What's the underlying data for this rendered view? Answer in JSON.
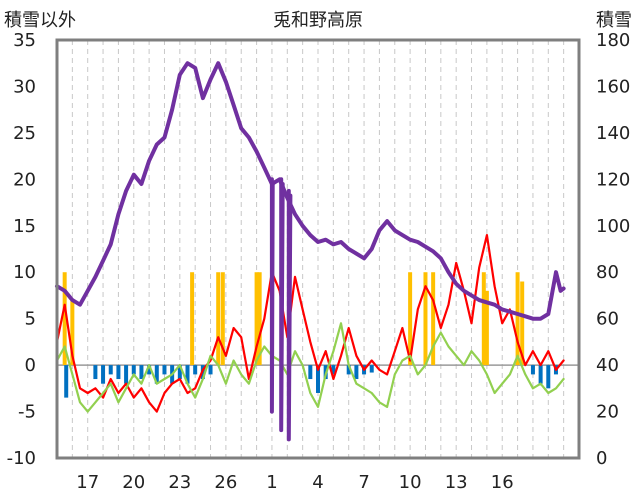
{
  "chart_data": {
    "type": "line",
    "title": "兎和野高原",
    "left_axis_label": "積雪以外",
    "right_axis_label": "積雪",
    "y_left_range": [
      -10,
      35
    ],
    "y_left_ticks": [
      "35",
      "30",
      "25",
      "20",
      "15",
      "10",
      "5",
      "0",
      "-5",
      "-10"
    ],
    "y_right_range": [
      0,
      180
    ],
    "y_right_ticks": [
      "180",
      "160",
      "140",
      "120",
      "100",
      "80",
      "60",
      "40",
      "20",
      "0"
    ],
    "x_range": [
      15,
      49
    ],
    "x_ticks": [
      {
        "x": 17,
        "label": "17"
      },
      {
        "x": 20,
        "label": "20"
      },
      {
        "x": 23,
        "label": "23"
      },
      {
        "x": 26,
        "label": "26"
      },
      {
        "x": 29,
        "label": "1"
      },
      {
        "x": 32,
        "label": "4"
      },
      {
        "x": 35,
        "label": "7"
      },
      {
        "x": 38,
        "label": "10"
      },
      {
        "x": 41,
        "label": "13"
      },
      {
        "x": 44,
        "label": "16"
      }
    ],
    "grid": "vertical dashed lines at every day",
    "colors": {
      "snow": "#7030a0",
      "temp_max": "#ff0000",
      "temp_min": "#92d050",
      "sunshine": "#ffc000",
      "precip": "#0070c0",
      "frame": "#7f7f7f"
    },
    "series": [
      {
        "axis": "right",
        "color": "#7030a0",
        "points": [
          [
            15.0,
            74
          ],
          [
            15.5,
            72
          ],
          [
            16.0,
            68
          ],
          [
            16.5,
            66
          ],
          [
            17.0,
            72
          ],
          [
            17.5,
            78
          ],
          [
            18.0,
            85
          ],
          [
            18.5,
            92
          ],
          [
            19.0,
            105
          ],
          [
            19.5,
            115
          ],
          [
            20.0,
            122
          ],
          [
            20.5,
            118
          ],
          [
            21.0,
            128
          ],
          [
            21.5,
            135
          ],
          [
            22.0,
            138
          ],
          [
            22.5,
            150
          ],
          [
            23.0,
            165
          ],
          [
            23.5,
            170
          ],
          [
            24.0,
            168
          ],
          [
            24.5,
            155
          ],
          [
            25.0,
            163
          ],
          [
            25.5,
            170
          ],
          [
            26.0,
            162
          ],
          [
            26.5,
            152
          ],
          [
            27.0,
            142
          ],
          [
            27.5,
            138
          ],
          [
            28.0,
            132
          ],
          [
            28.5,
            125
          ],
          [
            29.0,
            118
          ],
          [
            29.5,
            120
          ],
          [
            30.0,
            112
          ],
          [
            30.5,
            105
          ],
          [
            31.0,
            100
          ],
          [
            31.5,
            96
          ],
          [
            32.0,
            93
          ],
          [
            32.5,
            94
          ],
          [
            33.0,
            92
          ],
          [
            33.5,
            93
          ],
          [
            34.0,
            90
          ],
          [
            34.5,
            88
          ],
          [
            35.0,
            86
          ],
          [
            35.5,
            90
          ],
          [
            36.0,
            98
          ],
          [
            36.5,
            102
          ],
          [
            37.0,
            98
          ],
          [
            37.5,
            96
          ],
          [
            38.0,
            94
          ],
          [
            38.5,
            93
          ],
          [
            39.0,
            91
          ],
          [
            39.5,
            89
          ],
          [
            40.0,
            86
          ],
          [
            40.5,
            80
          ],
          [
            41.0,
            75
          ],
          [
            41.5,
            72
          ],
          [
            42.0,
            70
          ],
          [
            42.5,
            68
          ],
          [
            43.0,
            67
          ],
          [
            43.5,
            66
          ],
          [
            44.0,
            64
          ],
          [
            44.5,
            63
          ],
          [
            45.0,
            62
          ],
          [
            45.5,
            61
          ],
          [
            46.0,
            60
          ],
          [
            46.5,
            60
          ],
          [
            47.0,
            62
          ],
          [
            47.5,
            80
          ],
          [
            47.8,
            72
          ],
          [
            48.0,
            73
          ]
        ]
      },
      {
        "axis": "right",
        "color": "#7030a0",
        "points": [
          [
            29.0,
            120
          ],
          [
            29.0,
            20
          ],
          [
            29.05,
            118
          ]
        ]
      },
      {
        "axis": "right",
        "color": "#7030a0",
        "points": [
          [
            29.6,
            120
          ],
          [
            29.6,
            12
          ],
          [
            29.7,
            118
          ]
        ]
      },
      {
        "axis": "right",
        "color": "#7030a0",
        "points": [
          [
            30.1,
            115
          ],
          [
            30.1,
            8
          ],
          [
            30.2,
            113
          ]
        ]
      },
      {
        "axis": "left",
        "color": "#ff0000",
        "points": [
          [
            15.0,
            2.5
          ],
          [
            15.5,
            6.5
          ],
          [
            16.0,
            1.0
          ],
          [
            16.5,
            -2.5
          ],
          [
            17.0,
            -3.0
          ],
          [
            17.5,
            -2.5
          ],
          [
            18.0,
            -3.5
          ],
          [
            18.5,
            -1.5
          ],
          [
            19.0,
            -3.0
          ],
          [
            19.5,
            -2.0
          ],
          [
            20.0,
            -3.5
          ],
          [
            20.5,
            -2.5
          ],
          [
            21.0,
            -4.0
          ],
          [
            21.5,
            -5.0
          ],
          [
            22.0,
            -3.0
          ],
          [
            22.5,
            -2.0
          ],
          [
            23.0,
            -1.5
          ],
          [
            23.5,
            -3.0
          ],
          [
            24.0,
            -2.5
          ],
          [
            24.5,
            -0.5
          ],
          [
            25.0,
            0.5
          ],
          [
            25.5,
            3.0
          ],
          [
            26.0,
            1.0
          ],
          [
            26.5,
            4.0
          ],
          [
            27.0,
            3.0
          ],
          [
            27.5,
            -1.5
          ],
          [
            28.0,
            2.0
          ],
          [
            28.5,
            5.0
          ],
          [
            29.0,
            10.0
          ],
          [
            29.5,
            8.0
          ],
          [
            30.0,
            3.0
          ],
          [
            30.5,
            9.5
          ],
          [
            31.0,
            6.0
          ],
          [
            31.5,
            2.5
          ],
          [
            32.0,
            -0.5
          ],
          [
            32.5,
            1.5
          ],
          [
            33.0,
            -1.5
          ],
          [
            33.5,
            1.0
          ],
          [
            34.0,
            4.0
          ],
          [
            34.5,
            1.0
          ],
          [
            35.0,
            -0.5
          ],
          [
            35.5,
            0.5
          ],
          [
            36.0,
            -0.5
          ],
          [
            36.5,
            -1.0
          ],
          [
            37.0,
            1.5
          ],
          [
            37.5,
            4.0
          ],
          [
            38.0,
            0.5
          ],
          [
            38.5,
            6.0
          ],
          [
            39.0,
            8.5
          ],
          [
            39.5,
            7.0
          ],
          [
            40.0,
            4.0
          ],
          [
            40.5,
            6.5
          ],
          [
            41.0,
            11.0
          ],
          [
            41.5,
            8.0
          ],
          [
            42.0,
            4.5
          ],
          [
            42.5,
            10.5
          ],
          [
            43.0,
            14.0
          ],
          [
            43.5,
            8.5
          ],
          [
            44.0,
            4.5
          ],
          [
            44.5,
            6.0
          ],
          [
            45.0,
            2.5
          ],
          [
            45.5,
            0.0
          ],
          [
            46.0,
            1.5
          ],
          [
            46.5,
            0.0
          ],
          [
            47.0,
            1.5
          ],
          [
            47.5,
            -0.5
          ],
          [
            48.0,
            0.5
          ]
        ]
      },
      {
        "axis": "left",
        "color": "#92d050",
        "points": [
          [
            15.0,
            0.5
          ],
          [
            15.5,
            2.0
          ],
          [
            16.0,
            -1.0
          ],
          [
            16.5,
            -4.0
          ],
          [
            17.0,
            -5.0
          ],
          [
            17.5,
            -4.0
          ],
          [
            18.0,
            -3.0
          ],
          [
            18.5,
            -2.0
          ],
          [
            19.0,
            -4.0
          ],
          [
            19.5,
            -2.5
          ],
          [
            20.0,
            -1.0
          ],
          [
            20.5,
            -2.0
          ],
          [
            21.0,
            0.0
          ],
          [
            21.5,
            -2.0
          ],
          [
            22.0,
            -1.5
          ],
          [
            22.5,
            -1.0
          ],
          [
            23.0,
            0.0
          ],
          [
            23.5,
            -2.0
          ],
          [
            24.0,
            -3.5
          ],
          [
            24.5,
            -1.5
          ],
          [
            25.0,
            1.0
          ],
          [
            25.5,
            0.0
          ],
          [
            26.0,
            -2.0
          ],
          [
            26.5,
            0.5
          ],
          [
            27.0,
            -1.0
          ],
          [
            27.5,
            -2.0
          ],
          [
            28.0,
            0.5
          ],
          [
            28.5,
            2.0
          ],
          [
            29.0,
            1.0
          ],
          [
            29.5,
            0.5
          ],
          [
            30.0,
            -1.0
          ],
          [
            30.5,
            1.5
          ],
          [
            31.0,
            0.0
          ],
          [
            31.5,
            -3.0
          ],
          [
            32.0,
            -4.5
          ],
          [
            32.5,
            -1.0
          ],
          [
            33.0,
            1.5
          ],
          [
            33.5,
            4.5
          ],
          [
            34.0,
            0.0
          ],
          [
            34.5,
            -2.0
          ],
          [
            35.0,
            -2.5
          ],
          [
            35.5,
            -3.0
          ],
          [
            36.0,
            -4.0
          ],
          [
            36.5,
            -4.5
          ],
          [
            37.0,
            -1.0
          ],
          [
            37.5,
            0.5
          ],
          [
            38.0,
            1.0
          ],
          [
            38.5,
            -1.0
          ],
          [
            39.0,
            0.0
          ],
          [
            39.5,
            2.0
          ],
          [
            40.0,
            3.5
          ],
          [
            40.5,
            2.0
          ],
          [
            41.0,
            1.0
          ],
          [
            41.5,
            0.0
          ],
          [
            42.0,
            1.5
          ],
          [
            42.5,
            0.5
          ],
          [
            43.0,
            -1.0
          ],
          [
            43.5,
            -3.0
          ],
          [
            44.0,
            -2.0
          ],
          [
            44.5,
            -1.0
          ],
          [
            45.0,
            1.0
          ],
          [
            45.5,
            -1.0
          ],
          [
            46.0,
            -2.5
          ],
          [
            46.5,
            -2.0
          ],
          [
            47.0,
            -3.0
          ],
          [
            47.5,
            -2.5
          ],
          [
            48.0,
            -1.5
          ]
        ]
      }
    ],
    "bars": [
      {
        "axis": "left",
        "color": "#ffc000",
        "x": 15.5,
        "y0": 0,
        "y1": 10
      },
      {
        "axis": "left",
        "color": "#ffc000",
        "x": 16.0,
        "y0": 0,
        "y1": 7
      },
      {
        "axis": "left",
        "color": "#ffc000",
        "x": 23.8,
        "y0": 0,
        "y1": 10
      },
      {
        "axis": "left",
        "color": "#ffc000",
        "x": 25.5,
        "y0": 0,
        "y1": 10
      },
      {
        "axis": "left",
        "color": "#ffc000",
        "x": 25.8,
        "y0": 0,
        "y1": 10
      },
      {
        "axis": "left",
        "color": "#ffc000",
        "x": 28.0,
        "y0": 0,
        "y1": 10
      },
      {
        "axis": "left",
        "color": "#ffc000",
        "x": 28.2,
        "y0": 0,
        "y1": 10
      },
      {
        "axis": "left",
        "color": "#ffc000",
        "x": 38.0,
        "y0": 0,
        "y1": 10
      },
      {
        "axis": "left",
        "color": "#ffc000",
        "x": 39.0,
        "y0": 0,
        "y1": 10
      },
      {
        "axis": "left",
        "color": "#ffc000",
        "x": 39.5,
        "y0": 0,
        "y1": 10
      },
      {
        "axis": "left",
        "color": "#ffc000",
        "x": 42.8,
        "y0": 0,
        "y1": 10
      },
      {
        "axis": "left",
        "color": "#ffc000",
        "x": 43.0,
        "y0": 0,
        "y1": 8
      },
      {
        "axis": "left",
        "color": "#ffc000",
        "x": 45.0,
        "y0": 0,
        "y1": 10
      },
      {
        "axis": "left",
        "color": "#ffc000",
        "x": 45.3,
        "y0": 0,
        "y1": 9
      },
      {
        "axis": "left",
        "color": "#0070c0",
        "x": 15.6,
        "y0": 0,
        "y1": -3.5
      },
      {
        "axis": "left",
        "color": "#0070c0",
        "x": 17.5,
        "y0": 0,
        "y1": -1.5
      },
      {
        "axis": "left",
        "color": "#0070c0",
        "x": 18.0,
        "y0": 0,
        "y1": -2.0
      },
      {
        "axis": "left",
        "color": "#0070c0",
        "x": 18.5,
        "y0": 0,
        "y1": -1.0
      },
      {
        "axis": "left",
        "color": "#0070c0",
        "x": 19.0,
        "y0": 0,
        "y1": -1.5
      },
      {
        "axis": "left",
        "color": "#0070c0",
        "x": 19.5,
        "y0": 0,
        "y1": -2.0
      },
      {
        "axis": "left",
        "color": "#0070c0",
        "x": 20.0,
        "y0": 0,
        "y1": -1.0
      },
      {
        "axis": "left",
        "color": "#0070c0",
        "x": 20.5,
        "y0": 0,
        "y1": -1.5
      },
      {
        "axis": "left",
        "color": "#0070c0",
        "x": 21.0,
        "y0": 0,
        "y1": -1.0
      },
      {
        "axis": "left",
        "color": "#0070c0",
        "x": 21.5,
        "y0": 0,
        "y1": -2.0
      },
      {
        "axis": "left",
        "color": "#0070c0",
        "x": 22.0,
        "y0": 0,
        "y1": -1.0
      },
      {
        "axis": "left",
        "color": "#0070c0",
        "x": 22.5,
        "y0": 0,
        "y1": -2.0
      },
      {
        "axis": "left",
        "color": "#0070c0",
        "x": 23.0,
        "y0": 0,
        "y1": -1.5
      },
      {
        "axis": "left",
        "color": "#0070c0",
        "x": 23.5,
        "y0": 0,
        "y1": -2.0
      },
      {
        "axis": "left",
        "color": "#0070c0",
        "x": 24.0,
        "y0": 0,
        "y1": -1.0
      },
      {
        "axis": "left",
        "color": "#0070c0",
        "x": 24.5,
        "y0": 0,
        "y1": -1.5
      },
      {
        "axis": "left",
        "color": "#0070c0",
        "x": 25.0,
        "y0": 0,
        "y1": -1.0
      },
      {
        "axis": "left",
        "color": "#0070c0",
        "x": 31.5,
        "y0": 0,
        "y1": -1.5
      },
      {
        "axis": "left",
        "color": "#0070c0",
        "x": 32.0,
        "y0": 0,
        "y1": -3.0
      },
      {
        "axis": "left",
        "color": "#0070c0",
        "x": 32.5,
        "y0": 0,
        "y1": -1.5
      },
      {
        "axis": "left",
        "color": "#0070c0",
        "x": 33.0,
        "y0": 0,
        "y1": -1.0
      },
      {
        "axis": "left",
        "color": "#0070c0",
        "x": 34.0,
        "y0": 0,
        "y1": -1.0
      },
      {
        "axis": "left",
        "color": "#0070c0",
        "x": 34.5,
        "y0": 0,
        "y1": -1.5
      },
      {
        "axis": "left",
        "color": "#0070c0",
        "x": 35.0,
        "y0": 0,
        "y1": -1.0
      },
      {
        "axis": "left",
        "color": "#0070c0",
        "x": 35.5,
        "y0": 0,
        "y1": -0.8
      },
      {
        "axis": "left",
        "color": "#0070c0",
        "x": 46.0,
        "y0": 0,
        "y1": -1.0
      },
      {
        "axis": "left",
        "color": "#0070c0",
        "x": 46.5,
        "y0": 0,
        "y1": -2.0
      },
      {
        "axis": "left",
        "color": "#0070c0",
        "x": 47.0,
        "y0": 0,
        "y1": -2.5
      },
      {
        "axis": "left",
        "color": "#0070c0",
        "x": 47.5,
        "y0": 0,
        "y1": -1.0
      }
    ]
  }
}
